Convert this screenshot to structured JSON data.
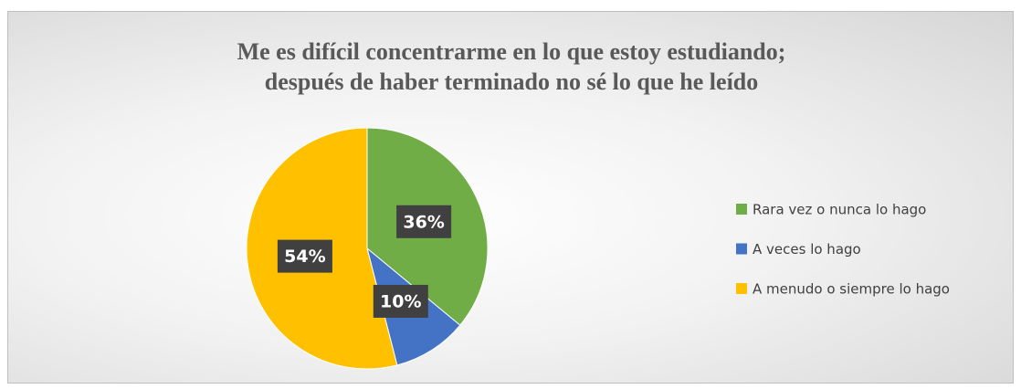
{
  "chart_data": {
    "type": "pie",
    "title": "Me es difícil concentrarme en lo que estoy estudiando; después de haber terminado no sé lo que he leído",
    "categories": [
      "Rara vez o nunca lo hago",
      "A veces lo hago",
      "A menudo o siempre lo hago"
    ],
    "values": [
      36,
      10,
      54
    ],
    "value_labels": [
      "36%",
      "10%",
      "54%"
    ],
    "colors": [
      "#70ad47",
      "#4472c4",
      "#ffc000"
    ],
    "legend": "right"
  }
}
